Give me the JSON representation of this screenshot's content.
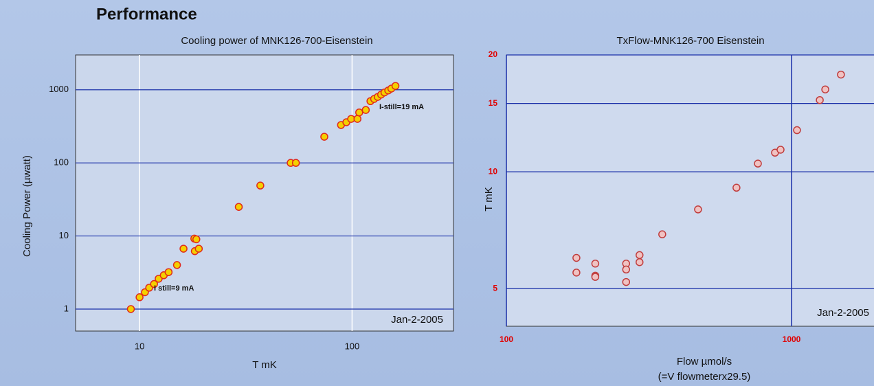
{
  "page": {
    "title": "Performance"
  },
  "chart_data": [
    {
      "type": "scatter",
      "title": "Cooling power of MNK126-700-Eisenstein",
      "xlabel": "T mK",
      "ylabel": "Cooling Power (µwatt)",
      "xscale": "log",
      "yscale": "log",
      "grid": true,
      "xlim": [
        5,
        300
      ],
      "ylim": [
        0.5,
        3000
      ],
      "xticks": [
        10,
        100
      ],
      "yticks": [
        1,
        10,
        100,
        1000
      ],
      "color": "#f5d000",
      "edgecolor": "#e02a1a",
      "x": [
        9.1,
        10,
        10.6,
        11.1,
        11.7,
        12.3,
        13,
        13.7,
        15,
        16.1,
        18.1,
        18.5,
        18.2,
        19,
        29.3,
        37,
        51.4,
        54.4,
        74,
        88.7,
        94,
        99,
        106,
        108,
        116,
        122,
        127,
        132,
        137,
        142,
        148,
        153,
        160
      ],
      "values": [
        1,
        1.45,
        1.7,
        1.96,
        2.2,
        2.6,
        2.9,
        3.2,
        4,
        6.7,
        9.2,
        9,
        6.2,
        6.7,
        25,
        49,
        100,
        100,
        228,
        330,
        360,
        400,
        400,
        490,
        530,
        700,
        750,
        800,
        860,
        920,
        980,
        1040,
        1130
      ],
      "annotations": [
        "I-still=19 mA",
        "I still=9 mA",
        "Jan-2-2005"
      ]
    },
    {
      "type": "scatter",
      "title": "TxFlow-MNK126-700 Eisenstein",
      "xlabel": "Flow µmol/s",
      "xlabel2": "(=V flowmeterx29.5)",
      "ylabel": "T mK",
      "xscale": "log",
      "yscale": "log",
      "grid": true,
      "xlim": [
        100,
        1946
      ],
      "ylim": [
        4,
        20
      ],
      "xticks": [
        100,
        1000
      ],
      "yticks": [
        5,
        10,
        15,
        20
      ],
      "color": "#f0c2c2",
      "edgecolor": "#c03c3c",
      "x": [
        176,
        176,
        205,
        205,
        205,
        263,
        263,
        263,
        293,
        293,
        352,
        470,
        641,
        762,
        875,
        915,
        1045,
        1256,
        1313,
        1490
      ],
      "values": [
        6.0,
        5.5,
        5.8,
        5.4,
        5.36,
        5.8,
        5.6,
        5.2,
        6.1,
        5.85,
        6.9,
        8.0,
        9.1,
        10.5,
        11.2,
        11.4,
        12.8,
        15.3,
        16.3,
        17.8
      ],
      "annotations": [
        "Jan-2-2005"
      ]
    }
  ]
}
